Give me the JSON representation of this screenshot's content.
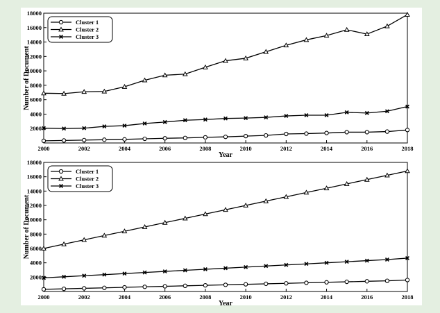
{
  "chart_data": [
    {
      "type": "line",
      "x": [
        2000,
        2001,
        2002,
        2003,
        2004,
        2005,
        2006,
        2007,
        2008,
        2009,
        2010,
        2011,
        2012,
        2013,
        2014,
        2015,
        2016,
        2017,
        2018
      ],
      "xlabel": "Year",
      "ylabel": "Number of Document",
      "xlim": [
        2000,
        2018
      ],
      "ylim": [
        0,
        18000
      ],
      "xticks": [
        "2000",
        "2002",
        "2004",
        "2006",
        "2008",
        "2010",
        "2012",
        "2014",
        "2016",
        "2018"
      ],
      "yticks": [
        "2000",
        "4000",
        "6000",
        "8000",
        "10000",
        "12000",
        "14000",
        "16000",
        "18000"
      ],
      "grid": false,
      "legend_position": "top-left",
      "series": [
        {
          "name": "Cluster 1",
          "marker": "circle",
          "values": [
            300,
            350,
            400,
            450,
            500,
            580,
            650,
            700,
            780,
            850,
            950,
            1050,
            1250,
            1300,
            1380,
            1500,
            1500,
            1580,
            1800
          ]
        },
        {
          "name": "Cluster 2",
          "marker": "triangle",
          "values": [
            6900,
            6850,
            7100,
            7150,
            7800,
            8700,
            9400,
            9550,
            10500,
            11400,
            11750,
            12650,
            13550,
            14300,
            14900,
            15700,
            15100,
            16200,
            17800
          ]
        },
        {
          "name": "Cluster 3",
          "marker": "x",
          "values": [
            2050,
            2000,
            2050,
            2300,
            2400,
            2700,
            2900,
            3150,
            3250,
            3400,
            3450,
            3550,
            3750,
            3850,
            3850,
            4250,
            4150,
            4400,
            5050
          ]
        }
      ]
    },
    {
      "type": "line",
      "x": [
        2000,
        2001,
        2002,
        2003,
        2004,
        2005,
        2006,
        2007,
        2008,
        2009,
        2010,
        2011,
        2012,
        2013,
        2014,
        2015,
        2016,
        2017,
        2018
      ],
      "xlabel": "Year",
      "ylabel": "Number of Document",
      "xlim": [
        2000,
        2018
      ],
      "ylim": [
        0,
        18000
      ],
      "xticks": [
        "2000",
        "2002",
        "2004",
        "2006",
        "2008",
        "2010",
        "2012",
        "2014",
        "2016",
        "2018"
      ],
      "yticks": [
        "2000",
        "4000",
        "6000",
        "8000",
        "10000",
        "12000",
        "14000",
        "16000",
        "18000"
      ],
      "grid": false,
      "legend_position": "top-left",
      "series": [
        {
          "name": "Cluster 1",
          "marker": "circle",
          "values": [
            300,
            370,
            440,
            510,
            580,
            650,
            720,
            790,
            860,
            930,
            1000,
            1070,
            1140,
            1210,
            1280,
            1350,
            1420,
            1490,
            1600
          ]
        },
        {
          "name": "Cluster 2",
          "marker": "triangle",
          "values": [
            6000,
            6600,
            7200,
            7800,
            8400,
            9000,
            9600,
            10200,
            10800,
            11400,
            12000,
            12600,
            13200,
            13800,
            14400,
            15000,
            15600,
            16200,
            16800
          ]
        },
        {
          "name": "Cluster 3",
          "marker": "x",
          "values": [
            1900,
            2050,
            2200,
            2350,
            2500,
            2650,
            2800,
            2950,
            3100,
            3250,
            3400,
            3550,
            3700,
            3850,
            4000,
            4150,
            4300,
            4450,
            4650
          ]
        }
      ]
    }
  ]
}
